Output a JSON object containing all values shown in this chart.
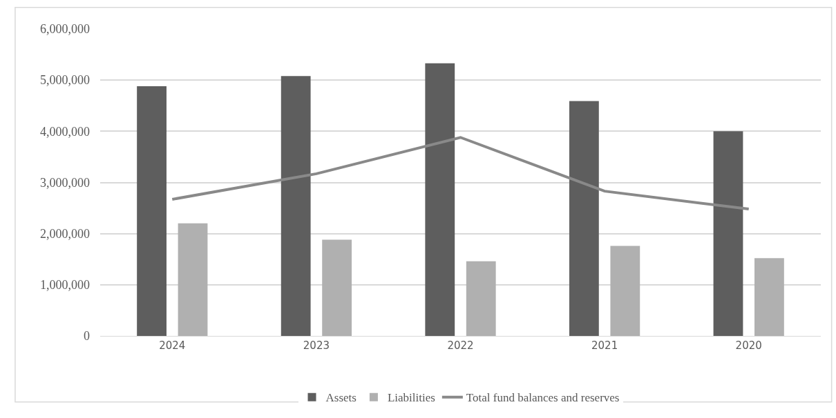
{
  "chart_data": {
    "type": "bar",
    "categories": [
      "2024",
      "2023",
      "2022",
      "2021",
      "2020"
    ],
    "series": [
      {
        "name": "Assets",
        "color": "#5e5e5e",
        "values": [
          4880000,
          5080000,
          5330000,
          4590000,
          4000000
        ]
      },
      {
        "name": "Liabilities",
        "color": "#b0b0b0",
        "values": [
          2200000,
          1880000,
          1460000,
          1760000,
          1520000
        ]
      },
      {
        "name": "Total fund balances and reserves",
        "type": "line",
        "color": "#898989",
        "values": [
          2670000,
          3170000,
          3880000,
          2830000,
          2480000
        ]
      }
    ],
    "ylim": [
      0,
      6000000
    ],
    "yticks": [
      {
        "value": 0,
        "label": "0"
      },
      {
        "value": 1000000,
        "label": "1,000,000"
      },
      {
        "value": 2000000,
        "label": "2,000,000"
      },
      {
        "value": 3000000,
        "label": "3,000,000"
      },
      {
        "value": 4000000,
        "label": "4,000,000"
      },
      {
        "value": 5000000,
        "label": "5,000,000"
      },
      {
        "value": 6000000,
        "label": "6,000,000"
      }
    ],
    "grid": "y",
    "legend": "bottom",
    "marker": "none",
    "line_style": "solid"
  }
}
